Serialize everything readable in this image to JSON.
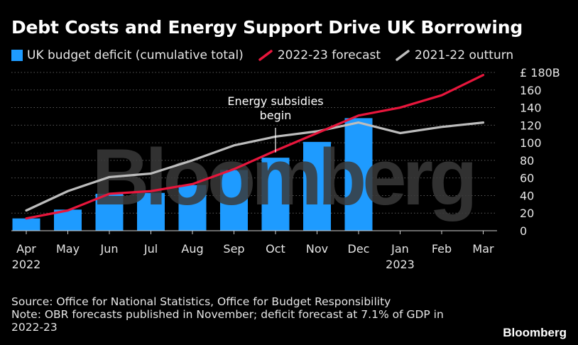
{
  "title": "Debt Costs and Energy Support Drive UK Borrowing",
  "legend": {
    "bar_label": "UK budget deficit (cumulative total)",
    "forecast_label": "2022-23 forecast",
    "outturn_label": "2021-22 outturn"
  },
  "colors": {
    "bar": "#1e9bff",
    "forecast": "#e8163c",
    "outturn": "#bdbdbd",
    "watermark": "#3a3a3a"
  },
  "watermark": "Bloomberg",
  "chart_data": {
    "type": "bar",
    "title": "Debt Costs and Energy Support Drive UK Borrowing",
    "categories": [
      "Apr",
      "May",
      "Jun",
      "Jul",
      "Aug",
      "Sep",
      "Oct",
      "Nov",
      "Dec",
      "Jan",
      "Feb",
      "Mar"
    ],
    "year_labels": [
      {
        "category": "Apr",
        "label": "2022"
      },
      {
        "category": "Jan",
        "label": "2023"
      }
    ],
    "ylim": [
      0,
      180
    ],
    "yticks": [
      0,
      20,
      40,
      60,
      80,
      100,
      120,
      140,
      160,
      180
    ],
    "ytick_labels": [
      "0",
      "20",
      "40",
      "60",
      "80",
      "100",
      "120",
      "140",
      "160",
      "£ 180B"
    ],
    "series": [
      {
        "name": "UK budget deficit (cumulative total)",
        "kind": "bar",
        "values": [
          14,
          24,
          42,
          43,
          52,
          69,
          83,
          101,
          128,
          null,
          null,
          null
        ]
      },
      {
        "name": "2022-23 forecast",
        "kind": "line",
        "values": [
          14,
          23,
          42,
          45,
          53,
          70,
          91,
          111,
          131,
          140,
          154,
          177
        ]
      },
      {
        "name": "2021-22 outturn",
        "kind": "line",
        "values": [
          23,
          45,
          61,
          65,
          80,
          97,
          107,
          113,
          123,
          111,
          118,
          123
        ]
      }
    ],
    "annotation": {
      "text_line1": "Energy subsidies",
      "text_line2": "begin",
      "category": "Oct",
      "value": 89
    },
    "grid": true
  },
  "source_line1": "Source: Office for National Statistics, Office for Budget Responsibility",
  "source_line2": "Note: OBR forecasts published in November; deficit forecast at 7.1% of GDP in",
  "source_line3": "2022-23",
  "brand": "Bloomberg"
}
